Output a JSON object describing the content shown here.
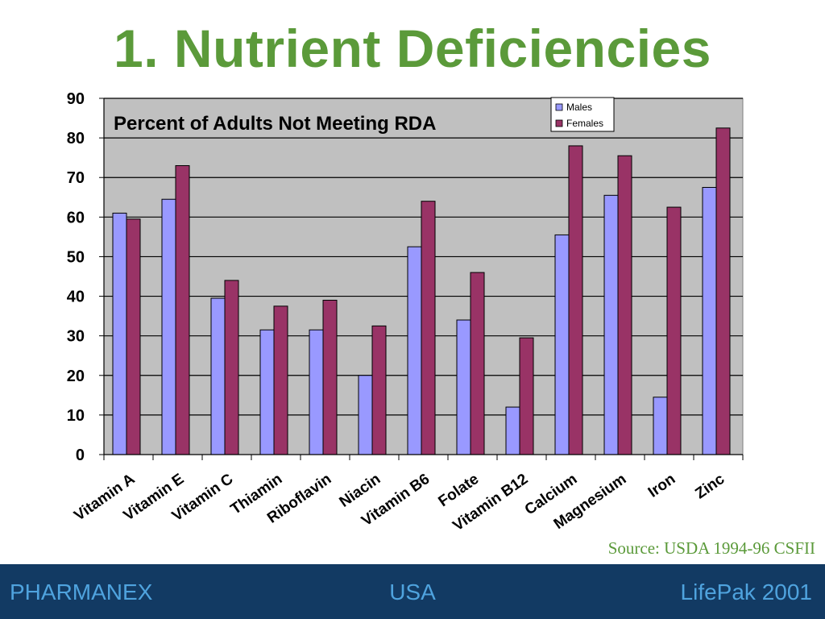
{
  "slide": {
    "title": "1. Nutrient Deficiencies",
    "source": "Source: USDA 1994-96 CSFII"
  },
  "footer": {
    "left": "PHARMANEX",
    "center": "USA",
    "right": "LifePak 2001"
  },
  "chart_data": {
    "type": "bar",
    "title": "Percent of Adults Not Meeting RDA",
    "categories": [
      "Vitamin A",
      "Vitamin E",
      "Vitamin C",
      "Thiamin",
      "Riboflavin",
      "Niacin",
      "Vitamin B6",
      "Folate",
      "Vitamin B12",
      "Calcium",
      "Magnesium",
      "Iron",
      "Zinc"
    ],
    "series": [
      {
        "name": "Males",
        "color": "#9999ff",
        "values": [
          61,
          64.5,
          39.5,
          31.5,
          31.5,
          20,
          52.5,
          34,
          12,
          55.5,
          65.5,
          14.5,
          67.5
        ]
      },
      {
        "name": "Females",
        "color": "#993366",
        "values": [
          59.5,
          73,
          44,
          37.5,
          39,
          32.5,
          64,
          46,
          29.5,
          78,
          75.5,
          62.5,
          82.5
        ]
      }
    ],
    "xlabel": "",
    "ylabel": "",
    "ylim": [
      0,
      90
    ],
    "yticks": [
      0,
      10,
      20,
      30,
      40,
      50,
      60,
      70,
      80,
      90
    ],
    "grid": true,
    "plot_background": "#c0c0c0",
    "legend_position": "top-right"
  }
}
